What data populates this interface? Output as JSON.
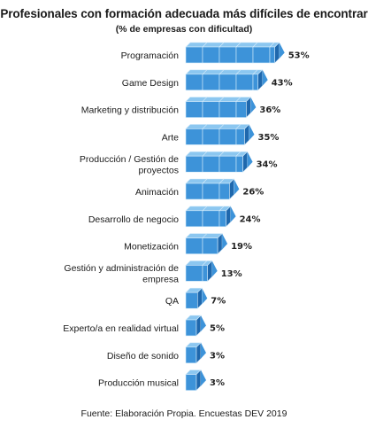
{
  "colors": {
    "bar_face": "#3d93d9",
    "bar_top": "#8cc7f0",
    "bar_side": "#1f68ad",
    "bar_edge": "#d5ebfa"
  },
  "chart_data": {
    "type": "bar",
    "orientation": "horizontal",
    "title": "Profesionales con formación adecuada más difíciles de encontrar",
    "subtitle": "(% de empresas con dificultad)",
    "source": "Fuente: Elaboración Propia. Encuestas DEV 2019",
    "categories": [
      [
        "Programación"
      ],
      [
        "Game Design"
      ],
      [
        "Marketing y distribución"
      ],
      [
        "Arte"
      ],
      [
        "Producción / Gestión de",
        "proyectos"
      ],
      [
        "Animación"
      ],
      [
        "Desarrollo de negocio"
      ],
      [
        "Monetización"
      ],
      [
        "Gestión y administración de",
        "empresa"
      ],
      [
        "QA"
      ],
      [
        "Experto/a en realidad virtual"
      ],
      [
        "Diseño de sonido"
      ],
      [
        "Producción musical"
      ]
    ],
    "values": [
      53,
      43,
      36,
      35,
      34,
      26,
      24,
      19,
      13,
      7,
      5,
      3,
      3
    ],
    "value_labels": [
      "53%",
      "43%",
      "36%",
      "35%",
      "34%",
      "26%",
      "24%",
      "19%",
      "13%",
      "7%",
      "5%",
      "3%",
      "3%"
    ],
    "legend": "none",
    "grid": false
  }
}
